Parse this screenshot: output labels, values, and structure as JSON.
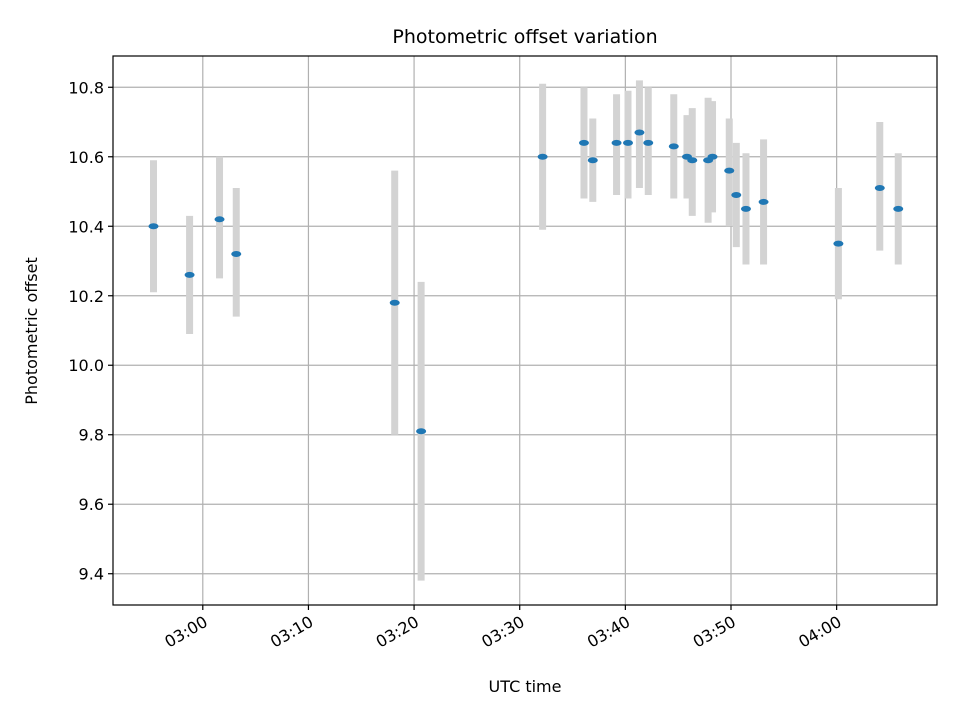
{
  "chart_data": {
    "type": "scatter",
    "title": "Photometric offset variation",
    "xlabel": "UTC time",
    "ylabel": "Photometric offset",
    "x_axis": {
      "type": "time",
      "range": [
        "02:51:30",
        "04:09:30"
      ],
      "ticks": [
        "03:00",
        "03:10",
        "03:20",
        "03:30",
        "03:40",
        "03:50",
        "04:00"
      ]
    },
    "y_axis": {
      "range": [
        9.31,
        10.89
      ],
      "ticks": [
        "9.4",
        "9.6",
        "9.8",
        "10.0",
        "10.2",
        "10.4",
        "10.6",
        "10.8"
      ]
    },
    "grid": true,
    "colors": {
      "point": "#1f77b4",
      "errorbar": "#d3d3d3",
      "grid": "#b0b0b0"
    },
    "series": [
      {
        "points": [
          {
            "time": "02:55:20",
            "y": 10.4,
            "low": 10.21,
            "high": 10.59
          },
          {
            "time": "02:58:45",
            "y": 10.26,
            "low": 10.09,
            "high": 10.43
          },
          {
            "time": "03:01:35",
            "y": 10.42,
            "low": 10.25,
            "high": 10.6
          },
          {
            "time": "03:03:10",
            "y": 10.32,
            "low": 10.14,
            "high": 10.51
          },
          {
            "time": "03:18:10",
            "y": 10.18,
            "low": 9.8,
            "high": 10.56
          },
          {
            "time": "03:20:40",
            "y": 9.81,
            "low": 9.38,
            "high": 10.24
          },
          {
            "time": "03:32:10",
            "y": 10.6,
            "low": 10.39,
            "high": 10.81
          },
          {
            "time": "03:36:05",
            "y": 10.64,
            "low": 10.48,
            "high": 10.8
          },
          {
            "time": "03:36:55",
            "y": 10.59,
            "low": 10.47,
            "high": 10.71
          },
          {
            "time": "03:39:10",
            "y": 10.64,
            "low": 10.49,
            "high": 10.78
          },
          {
            "time": "03:40:15",
            "y": 10.64,
            "low": 10.48,
            "high": 10.79
          },
          {
            "time": "03:41:20",
            "y": 10.67,
            "low": 10.51,
            "high": 10.82
          },
          {
            "time": "03:42:10",
            "y": 10.64,
            "low": 10.49,
            "high": 10.8
          },
          {
            "time": "03:44:35",
            "y": 10.63,
            "low": 10.48,
            "high": 10.78
          },
          {
            "time": "03:45:50",
            "y": 10.6,
            "low": 10.48,
            "high": 10.72
          },
          {
            "time": "03:46:20",
            "y": 10.59,
            "low": 10.43,
            "high": 10.74
          },
          {
            "time": "03:47:50",
            "y": 10.59,
            "low": 10.41,
            "high": 10.77
          },
          {
            "time": "03:48:15",
            "y": 10.6,
            "low": 10.44,
            "high": 10.76
          },
          {
            "time": "03:49:50",
            "y": 10.56,
            "low": 10.4,
            "high": 10.71
          },
          {
            "time": "03:50:30",
            "y": 10.49,
            "low": 10.34,
            "high": 10.64
          },
          {
            "time": "03:51:25",
            "y": 10.45,
            "low": 10.29,
            "high": 10.61
          },
          {
            "time": "03:53:05",
            "y": 10.47,
            "low": 10.29,
            "high": 10.65
          },
          {
            "time": "04:00:10",
            "y": 10.35,
            "low": 10.19,
            "high": 10.51
          },
          {
            "time": "04:04:05",
            "y": 10.51,
            "low": 10.33,
            "high": 10.7
          },
          {
            "time": "04:05:50",
            "y": 10.45,
            "low": 10.29,
            "high": 10.61
          }
        ]
      }
    ]
  }
}
